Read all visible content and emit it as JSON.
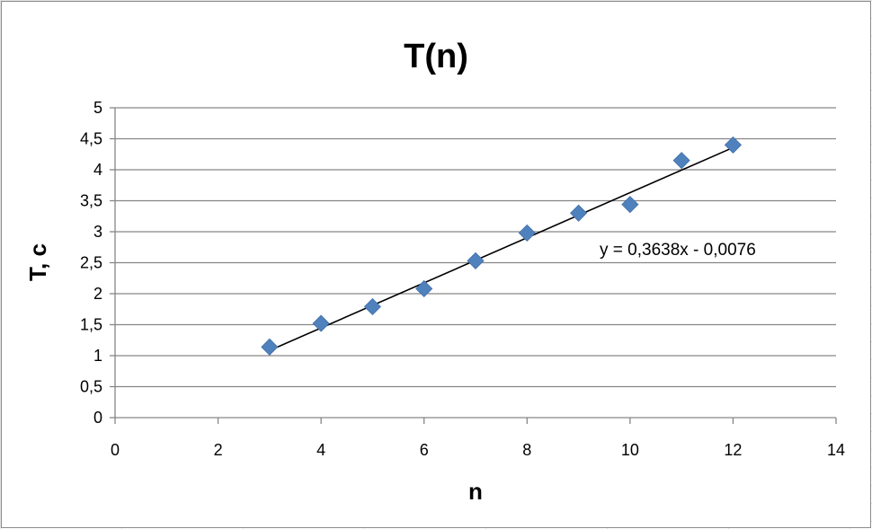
{
  "chart_data": {
    "type": "scatter",
    "title": "T(n)",
    "xlabel": "n",
    "ylabel": "T, c",
    "xlim": [
      0,
      14
    ],
    "ylim": [
      0,
      5
    ],
    "x_ticks": [
      "0",
      "2",
      "4",
      "6",
      "8",
      "10",
      "12",
      "14"
    ],
    "y_ticks": [
      "0",
      "0,5",
      "1",
      "1,5",
      "2",
      "2,5",
      "3",
      "3,5",
      "4",
      "4,5",
      "5"
    ],
    "grid": "horizontal",
    "marker": "diamond",
    "marker_color": "#4f81bd",
    "points": [
      {
        "x": 3,
        "y": 1.14
      },
      {
        "x": 4,
        "y": 1.52
      },
      {
        "x": 5,
        "y": 1.79
      },
      {
        "x": 6,
        "y": 2.08
      },
      {
        "x": 7,
        "y": 2.53
      },
      {
        "x": 8,
        "y": 2.98
      },
      {
        "x": 9,
        "y": 3.3
      },
      {
        "x": 10,
        "y": 3.44
      },
      {
        "x": 11,
        "y": 4.15
      },
      {
        "x": 12,
        "y": 4.4
      }
    ],
    "trendline": {
      "slope": 0.3638,
      "intercept": -0.0076,
      "x_range": [
        3,
        12
      ],
      "color": "#000000",
      "equation_label": "y = 0,3638x - 0,0076"
    }
  }
}
